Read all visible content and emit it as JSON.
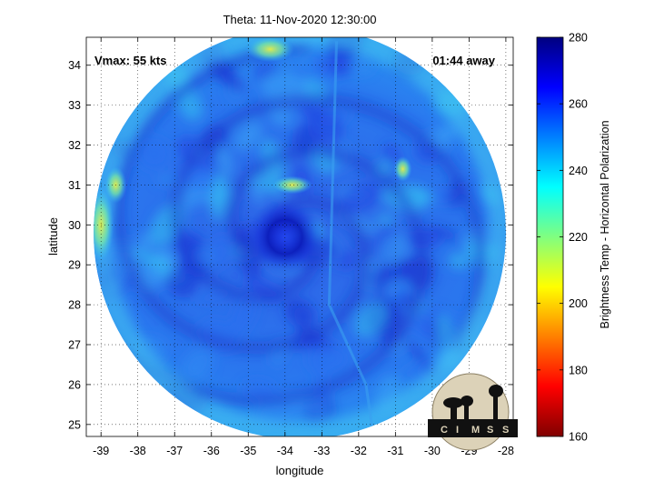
{
  "chart_data": {
    "type": "heatmap",
    "title": "Theta: 11-Nov-2020 12:30:00",
    "xlabel": "longitude",
    "ylabel": "latitude",
    "xlim": [
      -39.4,
      -27.8
    ],
    "ylim": [
      24.7,
      34.7
    ],
    "x_ticks": [
      -39,
      -38,
      -37,
      -36,
      -35,
      -34,
      -33,
      -32,
      -31,
      -30,
      -29,
      -28
    ],
    "x_tick_labels": [
      "-39",
      "-38",
      "-37",
      "-36",
      "-35",
      "-34",
      "-33",
      "-32",
      "-31",
      "-30",
      "-29",
      "-28"
    ],
    "y_ticks": [
      25,
      26,
      27,
      28,
      29,
      30,
      31,
      32,
      33,
      34
    ],
    "y_tick_labels": [
      "25",
      "26",
      "27",
      "28",
      "29",
      "30",
      "31",
      "32",
      "33",
      "34"
    ],
    "grid": true,
    "annotations": {
      "vmax": "Vmax: 55 kts",
      "time_away": "01:44 away"
    },
    "colorbar": {
      "label": "Brightness Temp - Horizontal Polarization",
      "range": [
        160,
        280
      ],
      "ticks": [
        160,
        180,
        200,
        220,
        240,
        260,
        280
      ],
      "tick_labels": [
        "160",
        "180",
        "200",
        "220",
        "240",
        "260",
        "280"
      ],
      "colormap": "jet"
    },
    "storm_center": {
      "lon": -34.0,
      "lat": 29.7
    },
    "swath_center": {
      "lon": -33.6,
      "lat": 29.8
    },
    "swath_radius_deg": 5.6,
    "field_summary": "Mostly 235-265 K; cold (~265-270 K) ring around center near 34W 29.7N; warm (~225-232 K) patches near 33.8W 31.0N, 30.8W 31.4N, western edge and north edge near 34.5W 34.5N"
  },
  "logo": {
    "text": "CIMSS",
    "letters": [
      "C",
      "I",
      "M",
      "S",
      "S"
    ],
    "colors": {
      "ink": "#111111",
      "badge": "#dcd2b8"
    }
  },
  "colors": {
    "background": "#ffffff",
    "grid": "#000000"
  }
}
